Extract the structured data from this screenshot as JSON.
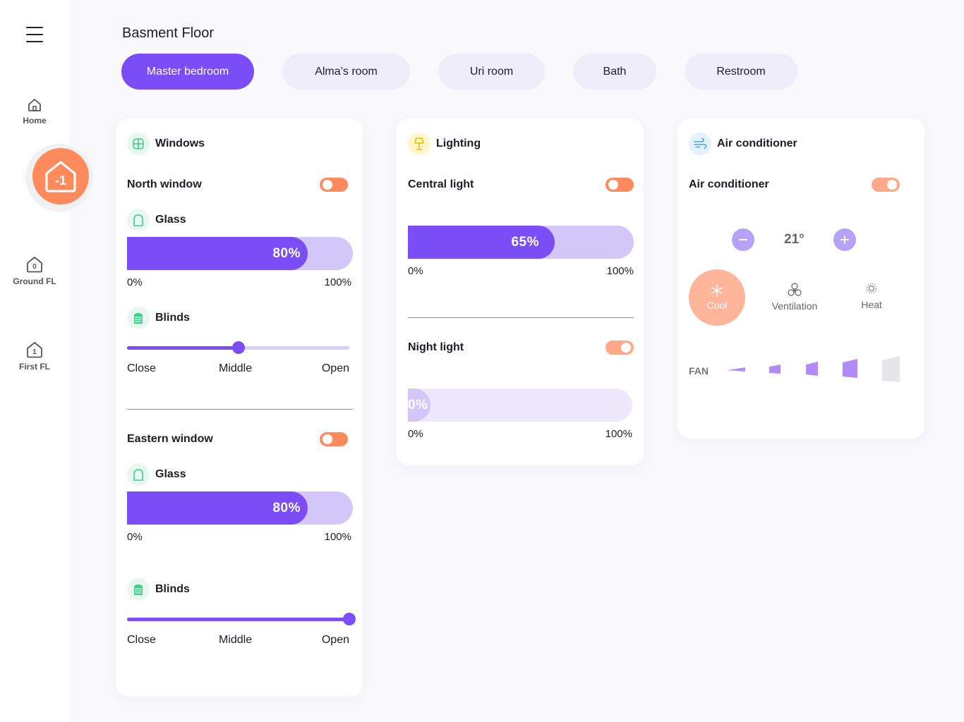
{
  "sidebar": {
    "items": [
      {
        "label": "Home",
        "icon": "home-icon"
      },
      {
        "label": "",
        "badge": "-1",
        "icon": "basement-floor-icon",
        "active": true
      },
      {
        "label": "Ground FL",
        "badge": "0",
        "icon": "ground-floor-icon"
      },
      {
        "label": "First FL",
        "badge": "1",
        "icon": "first-floor-icon"
      }
    ]
  },
  "header": {
    "title": "Basment Floor",
    "tabs": [
      {
        "label": "Master bedroom",
        "active": true
      },
      {
        "label": "Alma’s room"
      },
      {
        "label": "Uri room"
      },
      {
        "label": "Bath"
      },
      {
        "label": "Restroom"
      }
    ]
  },
  "windows": {
    "title": "Windows",
    "north": {
      "label": "North window",
      "on": false,
      "glass_label": "Glass",
      "glass_value": "80%",
      "glass_level": 0.8,
      "min": "0%",
      "max": "100%",
      "blinds_label": "Blinds",
      "blinds_level": 0.5,
      "close": "Close",
      "middle": "Middle",
      "open": "Open"
    },
    "eastern": {
      "label": "Eastern window",
      "on": false,
      "glass_label": "Glass",
      "glass_value": "80%",
      "glass_level": 0.8,
      "min": "0%",
      "max": "100%",
      "blinds_label": "Blinds",
      "blinds_level": 1.0,
      "close": "Close",
      "middle": "Middle",
      "open": "Open"
    }
  },
  "lighting": {
    "title": "Lighting",
    "central": {
      "label": "Central light",
      "on": false,
      "value": "65%",
      "level": 0.65,
      "min": "0%",
      "max": "100%"
    },
    "night": {
      "label": "Night light",
      "on": true,
      "value": "0%",
      "level": 0.0,
      "min": "0%",
      "max": "100%"
    }
  },
  "ac": {
    "title": "Air conditioner",
    "label": "Air conditioner",
    "on": true,
    "temperature": "21°",
    "modes": [
      {
        "label": "Cool",
        "icon": "snowflake-icon",
        "active": true
      },
      {
        "label": "Ventilation",
        "icon": "fan-icon"
      },
      {
        "label": "Heat",
        "icon": "sun-icon"
      }
    ],
    "fan_label": "FAN",
    "fan_level": 4,
    "fan_levels": 5
  },
  "colors": {
    "accent": "#7b4df7",
    "accent_light": "#d3c7f9",
    "orange": "#ff8a5b",
    "green": "#3ecf8e"
  }
}
